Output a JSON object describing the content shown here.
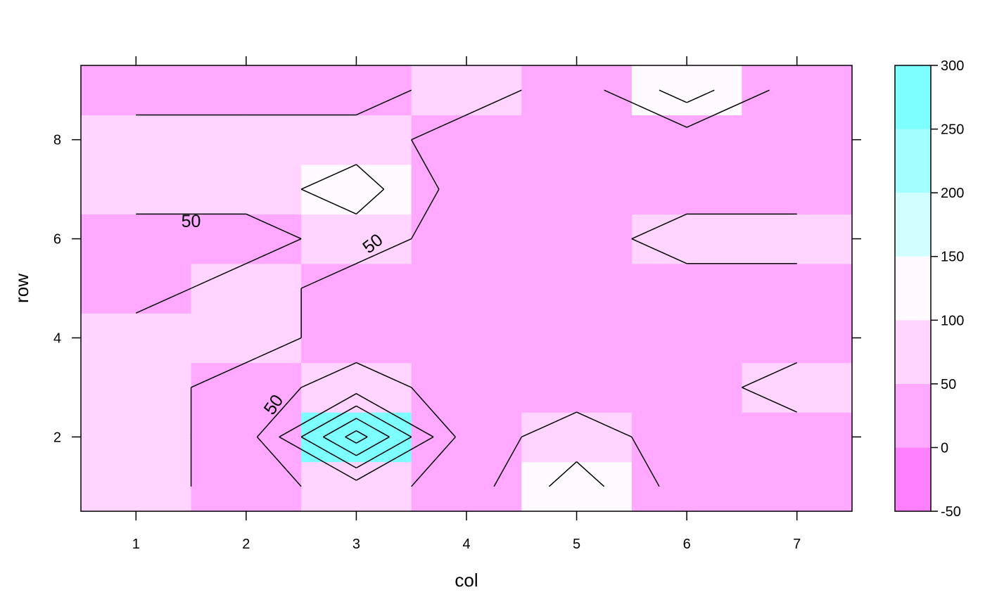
{
  "chart_data": {
    "type": "heatmap",
    "title": "",
    "xlabel": "col",
    "ylabel": "row",
    "x": [
      1,
      2,
      3,
      4,
      5,
      6,
      7
    ],
    "y": [
      1,
      2,
      3,
      4,
      5,
      6,
      7,
      8,
      9
    ],
    "xlim": [
      0.5,
      7.5
    ],
    "ylim": [
      0.5,
      9.5
    ],
    "x_ticks": [
      "1",
      "2",
      "3",
      "4",
      "5",
      "6",
      "7"
    ],
    "y_ticks": [
      "2",
      "4",
      "6",
      "8"
    ],
    "z": [
      [
        75,
        25,
        75,
        25,
        125,
        25,
        25
      ],
      [
        75,
        25,
        275,
        25,
        75,
        25,
        25
      ],
      [
        75,
        25,
        75,
        25,
        25,
        25,
        75
      ],
      [
        75,
        75,
        25,
        25,
        25,
        25,
        25
      ],
      [
        25,
        75,
        25,
        25,
        25,
        25,
        25
      ],
      [
        25,
        25,
        75,
        25,
        25,
        75,
        75
      ],
      [
        75,
        75,
        125,
        25,
        25,
        25,
        25
      ],
      [
        75,
        75,
        75,
        25,
        25,
        25,
        25
      ],
      [
        25,
        25,
        25,
        75,
        25,
        125,
        25
      ]
    ],
    "colorkey": {
      "breaks": [
        -50,
        0,
        50,
        100,
        150,
        200,
        250,
        300
      ],
      "colors": [
        "#FF80FF",
        "#FFA8FF",
        "#FFD4FF",
        "#FFFAFF",
        "#D1FFFF",
        "#A3FFFF",
        "#7DFFFF"
      ],
      "tick_labels": [
        "300",
        "250",
        "200",
        "150",
        "100",
        "50",
        "0",
        "-50"
      ]
    },
    "contour_levels": [
      50,
      100,
      150,
      200,
      250
    ],
    "contour_labels": [
      "50",
      "50",
      "50"
    ],
    "grid": false,
    "legend": "right"
  }
}
